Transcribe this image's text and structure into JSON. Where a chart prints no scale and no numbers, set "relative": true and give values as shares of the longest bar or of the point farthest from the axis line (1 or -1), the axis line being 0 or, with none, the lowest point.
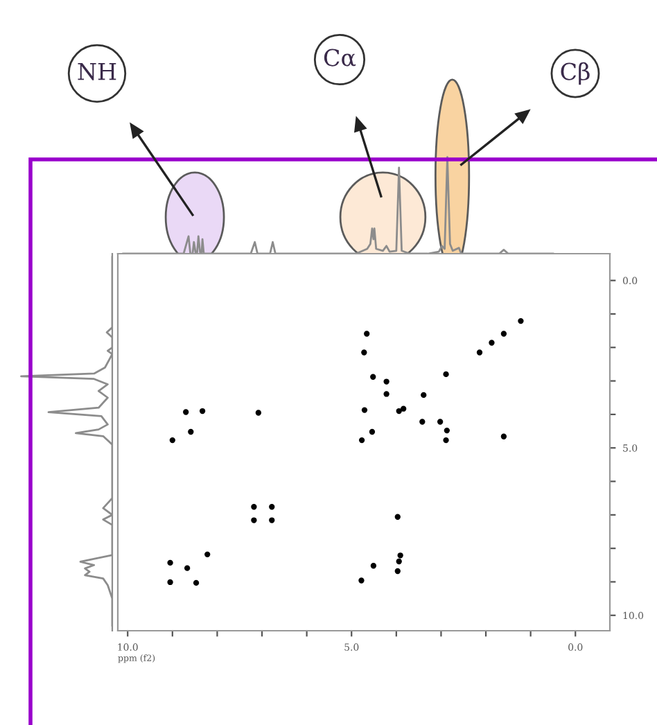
{
  "chart_data": [
    {
      "type": "line",
      "relative": true,
      "tick_labels": false,
      "xlim": [
        10.22,
        -0.77
      ],
      "x": [
        10.1,
        9.2,
        8.75,
        8.64,
        8.6,
        8.55,
        8.52,
        8.48,
        8.45,
        8.42,
        8.38,
        8.35,
        8.33,
        8.3,
        8.2,
        7.25,
        7.16,
        7.1,
        6.82,
        6.76,
        6.7,
        4.9,
        4.65,
        4.58,
        4.54,
        4.51,
        4.49,
        4.45,
        4.3,
        4.22,
        4.15,
        4.0,
        3.94,
        3.88,
        3.7,
        3.3,
        3.05,
        2.98,
        2.92,
        2.86,
        2.8,
        2.74,
        2.6,
        2.55,
        2.4,
        1.7,
        1.6,
        1.5,
        1.2,
        0.5
      ],
      "values": [
        0,
        0,
        0,
        0.18,
        0,
        0,
        0.12,
        0,
        0,
        0.18,
        0,
        0,
        0.15,
        0,
        0,
        0,
        0.12,
        0,
        0,
        0.12,
        0,
        0,
        0.05,
        0.1,
        0.26,
        0.15,
        0.26,
        0.05,
        0.03,
        0.08,
        0.02,
        0.03,
        0.89,
        0.03,
        0,
        0,
        0.02,
        0.08,
        0.05,
        1,
        0.1,
        0.03,
        0.06,
        0,
        0,
        0,
        0.04,
        0,
        0,
        0
      ],
      "color": "#8c8c8c",
      "annotations": [
        "NH",
        "Cα",
        "Cβ"
      ]
    },
    {
      "type": "line",
      "relative": true,
      "orientation": "horizontal",
      "tick_labels": false,
      "ylim": [
        10.46,
        -0.8
      ],
      "x": [
        -0.7,
        0.8,
        1.4,
        1.55,
        1.7,
        2.0,
        2.1,
        2.2,
        2.6,
        2.78,
        2.86,
        2.94,
        3.1,
        3.3,
        3.5,
        3.8,
        3.93,
        4.05,
        4.3,
        4.45,
        4.56,
        4.65,
        4.9,
        5.5,
        6.5,
        6.8,
        7.0,
        7.14,
        7.3,
        8.2,
        8.4,
        8.5,
        8.6,
        8.7,
        8.8,
        8.9,
        9.1,
        9.5,
        10.3
      ],
      "values": [
        0,
        0,
        0,
        -0.06,
        0,
        0,
        -0.05,
        0,
        -0.08,
        -0.2,
        -1,
        -0.2,
        -0.05,
        -0.15,
        -0.05,
        -0.15,
        -0.7,
        -0.12,
        -0.05,
        -0.15,
        -0.4,
        -0.1,
        0,
        0,
        0,
        -0.1,
        0,
        -0.1,
        0,
        0,
        -0.35,
        -0.2,
        -0.3,
        -0.25,
        -0.3,
        -0.1,
        -0.05,
        0,
        0
      ],
      "color": "#8c8c8c"
    },
    {
      "type": "scatter",
      "marker": "circle",
      "color": "#000000",
      "grid": false,
      "legend": false,
      "xlabel": "ppm (f2)",
      "xlim": [
        10.22,
        -0.77
      ],
      "ylim": [
        10.46,
        -0.8
      ],
      "xticks": [
        {
          "value": 10,
          "label": "10.0"
        },
        {
          "value": 9,
          "label": null
        },
        {
          "value": 8,
          "label": null
        },
        {
          "value": 7,
          "label": null
        },
        {
          "value": 6,
          "label": null
        },
        {
          "value": 5,
          "label": "5.0"
        },
        {
          "value": 4,
          "label": null
        },
        {
          "value": 3,
          "label": null
        },
        {
          "value": 2,
          "label": null
        },
        {
          "value": 1,
          "label": null
        },
        {
          "value": 0,
          "label": "0.0"
        }
      ],
      "yticks": [
        {
          "value": 0,
          "label": "0.0"
        },
        {
          "value": 1,
          "label": null
        },
        {
          "value": 2,
          "label": null
        },
        {
          "value": 3,
          "label": null
        },
        {
          "value": 4,
          "label": null
        },
        {
          "value": 5,
          "label": "5.0"
        },
        {
          "value": 6,
          "label": null
        },
        {
          "value": 7,
          "label": null
        },
        {
          "value": 8,
          "label": null
        },
        {
          "value": 9,
          "label": null
        },
        {
          "value": 10,
          "label": "10.0"
        }
      ],
      "x": [
        1.22,
        1.6,
        1.87,
        2.14,
        4.66,
        4.72,
        4.52,
        4.22,
        4.22,
        2.89,
        3.39,
        3.84,
        8.7,
        8.33,
        7.08,
        8.59,
        9.0,
        4.71,
        3.94,
        4.54,
        4.77,
        3.42,
        3.02,
        2.87,
        2.89,
        1.6,
        7.18,
        6.78,
        7.18,
        6.78,
        3.97,
        9.05,
        9.05,
        8.47,
        8.22,
        8.67,
        4.51,
        4.78,
        3.91,
        3.94,
        3.97
      ],
      "values": [
        1.21,
        1.59,
        1.86,
        2.15,
        1.59,
        2.15,
        2.88,
        3.02,
        3.39,
        2.8,
        3.42,
        3.83,
        3.93,
        3.9,
        3.95,
        4.52,
        4.77,
        3.87,
        3.9,
        4.52,
        4.77,
        4.22,
        4.22,
        4.48,
        4.77,
        4.66,
        6.76,
        6.76,
        7.16,
        7.16,
        7.06,
        8.43,
        9.01,
        9.03,
        8.18,
        8.59,
        8.52,
        8.96,
        8.21,
        8.39,
        8.68
      ]
    }
  ]
}
